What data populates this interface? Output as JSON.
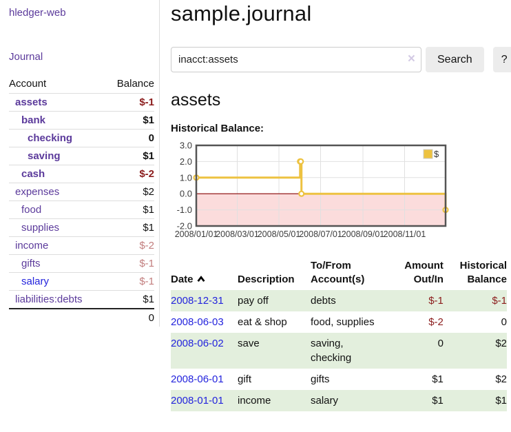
{
  "colors": {
    "purple": "#5b3a9b",
    "blue": "#2323dd",
    "dark_red": "#8b1c1c",
    "soft_red": "#c27e7e",
    "stripe_green": "#e3efdd",
    "gold": "#edc240",
    "pink_fill": "#fbdcdc",
    "zero_line": "#8b0000",
    "grid": "#e0e0e0",
    "chart_border": "#545454",
    "btn_bg": "#ececec"
  },
  "sidebar": {
    "brand": "hledger-web",
    "journal_link": "Journal",
    "accounts_table": {
      "headers": {
        "account": "Account",
        "balance": "Balance"
      },
      "rows": [
        {
          "account": "assets",
          "balance": "$-1",
          "indent": 1,
          "bold": true
        },
        {
          "account": "bank",
          "balance": "$1",
          "indent": 2,
          "bold": true
        },
        {
          "account": "checking",
          "balance": "0",
          "indent": 3,
          "bold": true
        },
        {
          "account": "saving",
          "balance": "$1",
          "indent": 3,
          "bold": true
        },
        {
          "account": "cash",
          "balance": "$-2",
          "indent": 2,
          "bold": true
        },
        {
          "account": "expenses",
          "balance": "$2",
          "indent": 1,
          "bold": false
        },
        {
          "account": "food",
          "balance": "$1",
          "indent": 2,
          "bold": false
        },
        {
          "account": "supplies",
          "balance": "$1",
          "indent": 2,
          "bold": false
        },
        {
          "account": "income",
          "balance": "$-2",
          "indent": 1,
          "bold": false
        },
        {
          "account": "gifts",
          "balance": "$-1",
          "indent": 2,
          "bold": false
        },
        {
          "account": "salary",
          "balance": "$-1",
          "indent": 2,
          "bold": false,
          "link_color": "blue"
        },
        {
          "account": "liabilities:debts",
          "balance": "$1",
          "indent": 1,
          "bold": false
        }
      ],
      "total": "0"
    }
  },
  "header": {
    "title": "sample.journal"
  },
  "search": {
    "query": "inacct:assets",
    "clear_icon": "×",
    "search_label": "Search",
    "help_label": "?"
  },
  "account_page": {
    "heading": "assets",
    "chart_label": "Historical Balance:"
  },
  "chart_data": {
    "type": "line",
    "title": "Historical Balance:",
    "step": true,
    "series": [
      {
        "name": "$",
        "color": "#edc240",
        "points": [
          [
            "2008-01-01",
            1
          ],
          [
            "2008-06-01",
            2
          ],
          [
            "2008-06-02",
            2
          ],
          [
            "2008-06-03",
            0
          ],
          [
            "2008-12-31",
            -1
          ]
        ]
      }
    ],
    "x_ticks": [
      {
        "label": "2008/01/01",
        "date": "2008-01-01"
      },
      {
        "label": "2008/03/01",
        "date": "2008-03-01"
      },
      {
        "label": "2008/05/01",
        "date": "2008-05-01"
      },
      {
        "label": "2008/07/01",
        "date": "2008-07-01"
      },
      {
        "label": "2008/09/01",
        "date": "2008-09-01"
      },
      {
        "label": "2008/11/01",
        "date": "2008-11-01"
      }
    ],
    "y_ticks": [
      "3.0",
      "2.0",
      "1.0",
      "0.0",
      "-1.0",
      "-2.0"
    ],
    "ylim": [
      -2,
      3
    ],
    "xlim": [
      "2008-01-01",
      "2008-12-31"
    ],
    "grid": true,
    "negative_region_shaded": true,
    "legend": {
      "label": "$",
      "position": "top-right"
    }
  },
  "register_table": {
    "headers": {
      "date": "Date",
      "description": "Description",
      "accounts": "To/From Account(s)",
      "amount": "Amount Out/In",
      "balance": "Historical Balance"
    },
    "sort_icon": "chevron-up",
    "rows": [
      {
        "date": "2008-12-31",
        "description": "pay off",
        "accounts": "debts",
        "amount": "$-1",
        "balance": "$-1"
      },
      {
        "date": "2008-06-03",
        "description": "eat & shop",
        "accounts": "food, supplies",
        "amount": "$-2",
        "balance": "0"
      },
      {
        "date": "2008-06-02",
        "description": "save",
        "accounts": "saving, checking",
        "amount": "0",
        "balance": "$2"
      },
      {
        "date": "2008-06-01",
        "description": "gift",
        "accounts": "gifts",
        "amount": "$1",
        "balance": "$2"
      },
      {
        "date": "2008-01-01",
        "description": "income",
        "accounts": "salary",
        "amount": "$1",
        "balance": "$1"
      }
    ]
  }
}
